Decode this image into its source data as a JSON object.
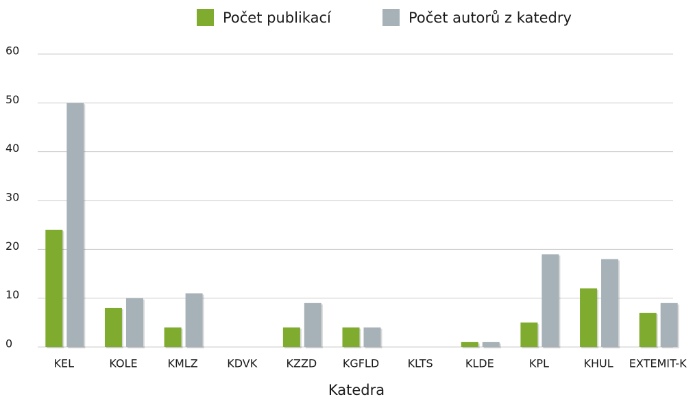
{
  "chart_data": {
    "type": "bar",
    "x_label": "Katedra",
    "categories": [
      "KEL",
      "KOLE",
      "KMLZ",
      "KDVK",
      "KZZD",
      "KGFLD",
      "KLTS",
      "KLDE",
      "KPL",
      "KHUL",
      "EXTEMIT-K"
    ],
    "series": [
      {
        "name": "Počet publikací",
        "color": "#7fab2e",
        "values": [
          24,
          8,
          4,
          0,
          4,
          4,
          0,
          1,
          5,
          12,
          7
        ]
      },
      {
        "name": "Počet autorů z katedry",
        "color": "#a7b2b8",
        "values": [
          50,
          10,
          11,
          0,
          9,
          4,
          0,
          1,
          19,
          18,
          9
        ]
      }
    ],
    "ylim": [
      0,
      60
    ],
    "yticks": [
      0,
      10,
      20,
      30,
      40,
      50,
      60
    ],
    "grid": true,
    "legend": "top"
  }
}
